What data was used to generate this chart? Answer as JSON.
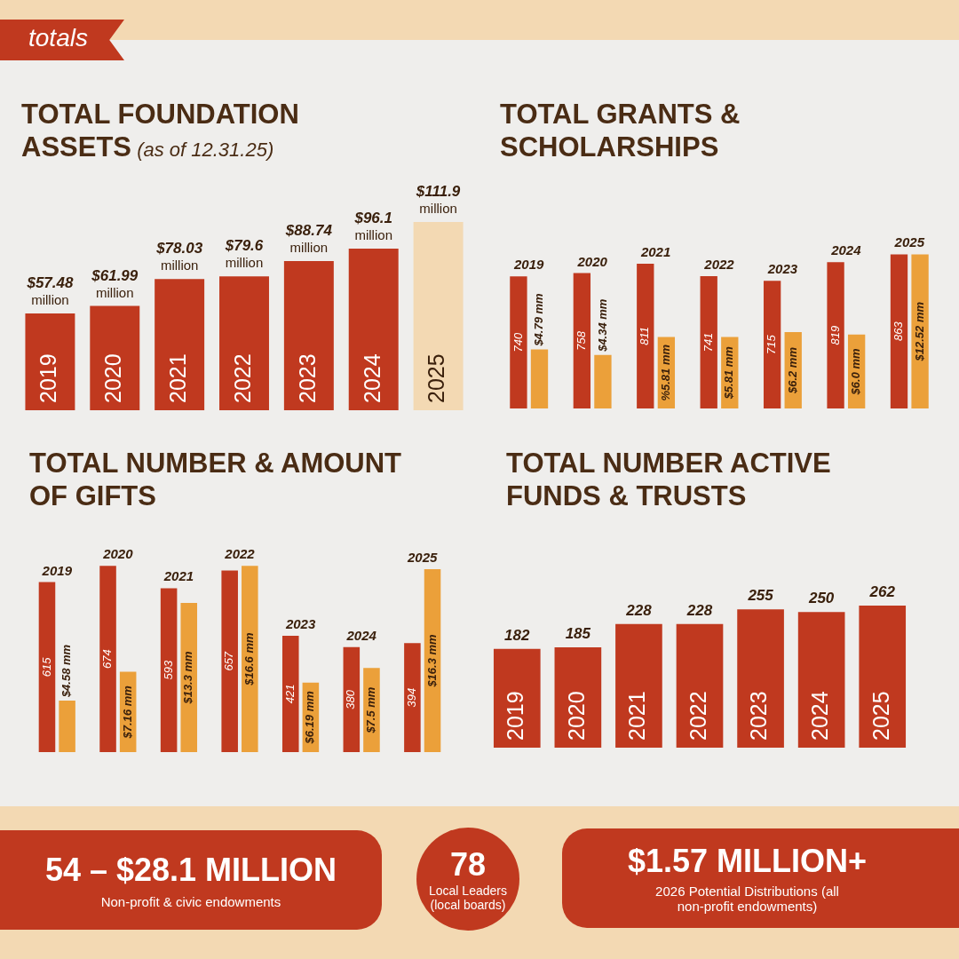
{
  "chart_data": [
    {
      "type": "bar",
      "title": "TOTAL FOUNDATION ASSETS",
      "subtitle": "(as of 12.31.25)",
      "categories": [
        "2019",
        "2020",
        "2021",
        "2022",
        "2023",
        "2024",
        "2025"
      ],
      "values": [
        57.48,
        61.99,
        78.03,
        79.6,
        88.74,
        96.1,
        111.9
      ],
      "colors": [
        "#c0391f",
        "#c0391f",
        "#c0391f",
        "#c0391f",
        "#c0391f",
        "#c0391f",
        "#f3d9b3"
      ],
      "value_labels": [
        "$57.48 million",
        "$61.99 million",
        "$78.03 million",
        "$79.6 million",
        "$88.74 million",
        "$96.1 million",
        "$111.9 million"
      ]
    },
    {
      "type": "bar",
      "title": "TOTAL GRANTS & SCHOLARSHIPS",
      "categories": [
        "2019",
        "2020",
        "2021",
        "2022",
        "2023",
        "2024",
        "2025"
      ],
      "series": [
        {
          "color": "#c0391f",
          "values": [
            740,
            758,
            811,
            741,
            715,
            819,
            863
          ],
          "value_labels": [
            "740",
            "758",
            "811",
            "741",
            "715",
            "819",
            "863"
          ]
        },
        {
          "color": "#eba03a",
          "axis": "y2",
          "values": [
            4.79,
            4.34,
            5.81,
            5.81,
            6.2,
            6.0,
            12.52
          ],
          "value_labels": [
            "$4.79 mm",
            "$4.34 mm",
            "%5.81 mm",
            "$5.81 mm",
            "$6.2 mm",
            "$6.0 mm",
            "$12.52 mm"
          ]
        }
      ]
    },
    {
      "type": "bar",
      "title": "TOTAL NUMBER & AMOUNT OF GIFTS",
      "categories": [
        "2019",
        "2020",
        "2021",
        "2022",
        "2023",
        "2024",
        "2025"
      ],
      "series": [
        {
          "color": "#c0391f",
          "values": [
            615,
            674,
            593,
            657,
            421,
            380,
            394
          ],
          "value_labels": [
            "615",
            "674",
            "593",
            "657",
            "421",
            "380",
            "394"
          ]
        },
        {
          "color": "#eba03a",
          "axis": "y2",
          "values": [
            4.58,
            7.16,
            13.3,
            16.6,
            6.19,
            7.5,
            16.3
          ],
          "value_labels": [
            "$4.58 mm",
            "$7.16 mm",
            "$13.3 mm",
            "$16.6 mm",
            "$6.19 mm",
            "$7.5 mm",
            "$16.3 mm"
          ]
        }
      ]
    },
    {
      "type": "bar",
      "title": "TOTAL NUMBER ACTIVE FUNDS & TRUSTS",
      "categories": [
        "2019",
        "2020",
        "2021",
        "2022",
        "2023",
        "2024",
        "2025"
      ],
      "values": [
        182,
        185,
        228,
        228,
        255,
        250,
        262
      ],
      "color": "#c0391f",
      "data_labels": true
    },
    {
      "type": "other",
      "title": "totals",
      "annotations": [
        "54 – $28.1 MILLION",
        "Non-profit & civic endowments",
        "78",
        "Local Leaders (local boards)",
        "$1.57 MILLION+",
        "2026 Potential Distributions (all non-profit endowments)"
      ]
    }
  ]
}
